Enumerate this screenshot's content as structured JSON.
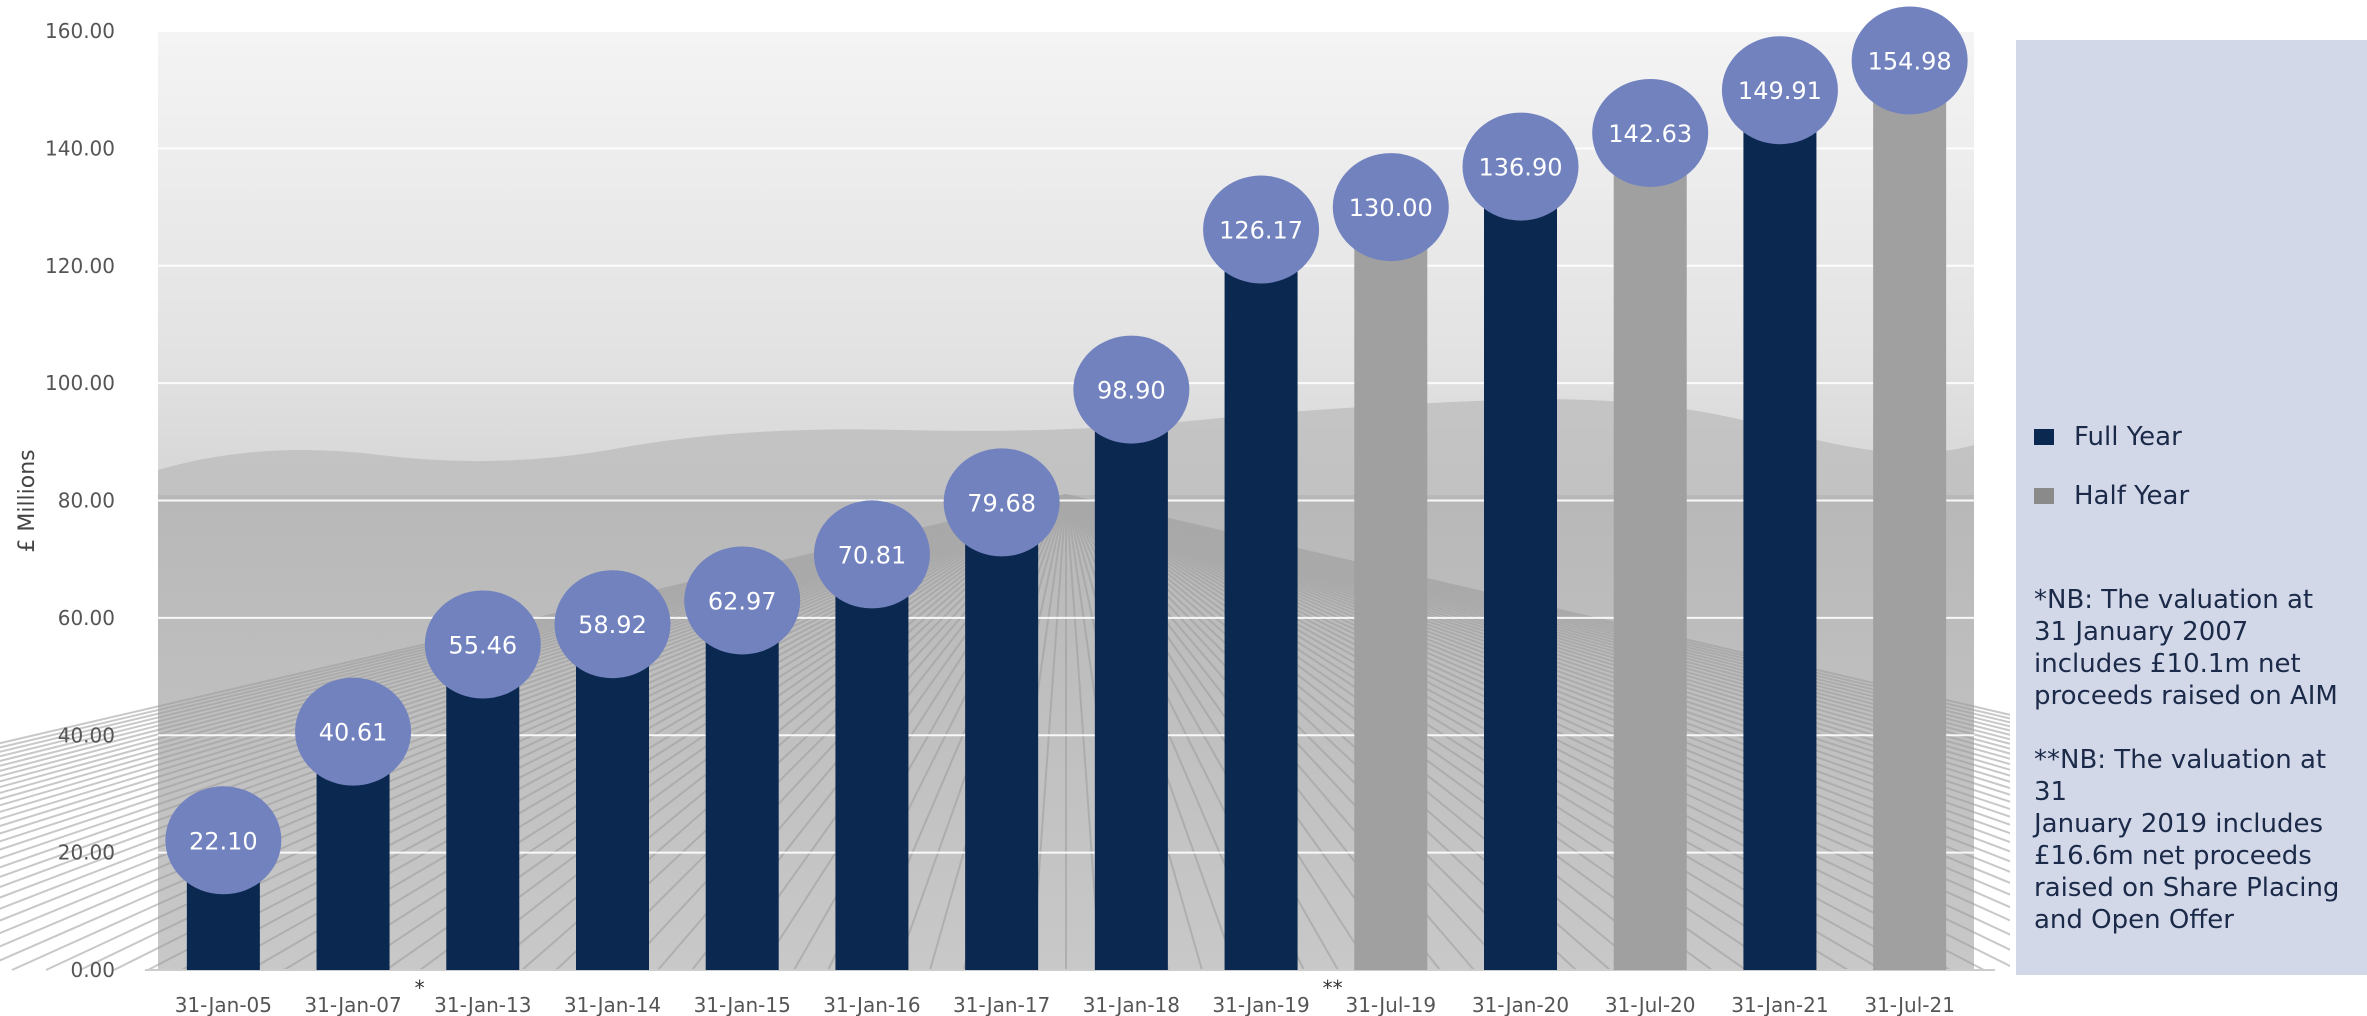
{
  "chart_data": {
    "type": "bar",
    "title": "",
    "ylabel": "£ Millions",
    "xlabel": "",
    "ylim": [
      0,
      160
    ],
    "y_ticks": [
      "0.00",
      "20.00",
      "40.00",
      "60.00",
      "80.00",
      "100.00",
      "120.00",
      "140.00",
      "160.00"
    ],
    "grid": true,
    "background": "grayscale photo of a ploughed field under a cloudy sky",
    "legend_position": "right",
    "categories": [
      "31-Jan-05",
      "31-Jan-07",
      "31-Jan-13",
      "31-Jan-14",
      "31-Jan-15",
      "31-Jan-16",
      "31-Jan-17",
      "31-Jan-18",
      "31-Jan-19",
      "31-Jul-19",
      "31-Jan-20",
      "31-Jul-20",
      "31-Jan-21",
      "31-Jul-21"
    ],
    "values": [
      22.1,
      40.61,
      55.46,
      58.92,
      62.97,
      70.81,
      79.68,
      98.9,
      126.17,
      130.0,
      136.9,
      142.63,
      149.91,
      154.98
    ],
    "labels": [
      "22.10",
      "40.61",
      "55.46",
      "58.92",
      "62.97",
      "70.81",
      "79.68",
      "98.90",
      "126.17",
      "130.00",
      "136.90",
      "142.63",
      "149.91",
      "154.98"
    ],
    "period": [
      "Full Year",
      "Full Year",
      "Full Year",
      "Full Year",
      "Full Year",
      "Full Year",
      "Full Year",
      "Full Year",
      "Full Year",
      "Half Year",
      "Full Year",
      "Half Year",
      "Full Year",
      "Half Year"
    ],
    "markers": [
      {
        "category": "31-Jan-07",
        "text": "*"
      },
      {
        "category": "31-Jan-19",
        "text": "**"
      }
    ],
    "legend": [
      {
        "name": "Full Year",
        "color": "#0b2850"
      },
      {
        "name": "Half Year",
        "color": "#a0a0a0"
      }
    ],
    "bubble_color": "#7182bf",
    "notes": [
      "*NB: The valuation at\n31 January 2007\nincludes £10.1m net\nproceeds raised on AIM",
      "**NB: The valuation at 31\nJanuary 2019 includes\n£16.6m net proceeds\nraised on Share Placing\nand Open Offer"
    ]
  }
}
